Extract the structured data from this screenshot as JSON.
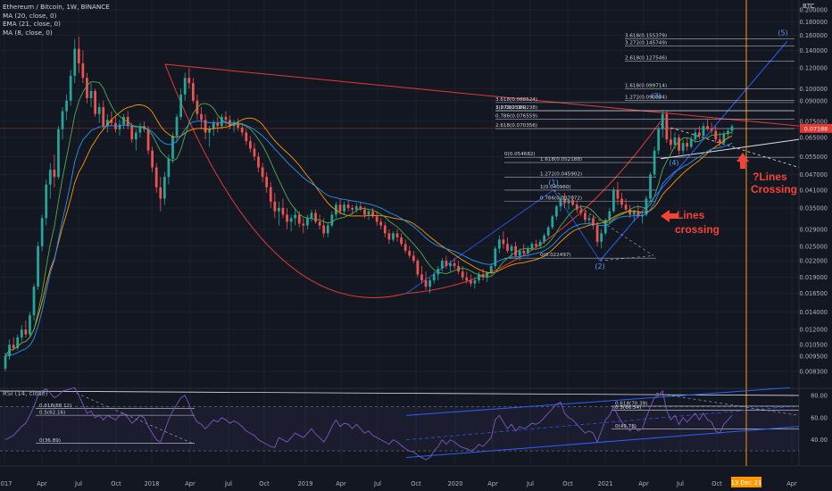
{
  "legend": {
    "symbol": "Ethereum / Bitcoin, 1W, BINANCE",
    "ema20": "MA (20, close, 0)",
    "ema21": "EMA (21, close, 0)",
    "ma8": "MA (8, close, 0)"
  },
  "currency_label": "BTC",
  "rsi_legend": "RSI (14, close)",
  "annotations": {
    "lines_crossing": "Lines\ncrossing",
    "future_crossing": "?Lines\nCrossing",
    "date_marker": "13 Dec 21"
  },
  "current_price_tag": "0.07188",
  "colors": {
    "up": "#26a69a",
    "down": "#ef5350",
    "ma20": "#ff9800",
    "ema21": "#2196f3",
    "ma8": "#4caf50",
    "resistance": "#e53935",
    "fib": "#d1d4dc",
    "rsi": "#7e57c2",
    "channel": "#2962ff",
    "annotation": "#f44336"
  },
  "chart_data": {
    "type": "candlestick",
    "title": "Ethereum / Bitcoin, 1W, BINANCE",
    "x_ticks": [
      "2017",
      "Apr",
      "Jul",
      "Oct",
      "2018",
      "Apr",
      "Jul",
      "Oct",
      "2019",
      "Apr",
      "Jul",
      "Oct",
      "2020",
      "Apr",
      "Jul",
      "Oct",
      "2021",
      "Apr",
      "Jul",
      "Oct",
      "13 Dec 21",
      "Apr"
    ],
    "y_ticks": [
      "0.200000",
      "0.180000",
      "0.160000",
      "0.140000",
      "0.120000",
      "0.100000",
      "0.090000",
      "0.075000",
      "0.065000",
      "0.055000",
      "0.047000",
      "0.041000",
      "0.035000",
      "0.029000",
      "0.025000",
      "0.022000",
      "0.019000",
      "0.016500",
      "0.014000",
      "0.012000",
      "0.010500",
      "0.009500",
      "0.008300"
    ],
    "rsi_ticks": [
      "80.00",
      "60.00",
      "40.00"
    ],
    "fib_labels_upper": [
      "3.618(0.155379)",
      "3.272(0.145749)",
      "2.618(0.127546)",
      "1.618(0.099714)",
      "1.272(0.090084)",
      "3.618(0.088524)",
      "1(0.082514)",
      "3.272(0.082238)",
      "0.786(0.076559)",
      "2.618(0.070356)",
      "0(0.054682)",
      "1.618(0.052188)",
      "1.272(0.045902)",
      "1(0.040960)",
      "0.786(0.037072)",
      "0(0.022497)"
    ],
    "fib_labels_rsi": [
      "0.618(68.12)",
      "0.5(62.16)",
      "0(36.89)",
      "0.618(70.39)",
      "0.5(66.54)",
      "0(49.78)"
    ],
    "wave_labels": [
      "(1)",
      "(2)",
      "(3)",
      "(4)",
      "(5)"
    ],
    "series": [
      {
        "name": "MA (20, close, 0)"
      },
      {
        "name": "EMA (21, close, 0)"
      },
      {
        "name": "MA (8, close, 0)"
      },
      {
        "name": "RSI (14, close)"
      }
    ],
    "candles": [
      [
        0.0085,
        0.0098,
        0.0083,
        0.0095
      ],
      [
        0.0095,
        0.011,
        0.0092,
        0.0105
      ],
      [
        0.0105,
        0.0112,
        0.01,
        0.0102
      ],
      [
        0.0102,
        0.0115,
        0.01,
        0.0112
      ],
      [
        0.0112,
        0.0125,
        0.0108,
        0.012
      ],
      [
        0.012,
        0.013,
        0.0112,
        0.0115
      ],
      [
        0.0115,
        0.014,
        0.0113,
        0.0136
      ],
      [
        0.0136,
        0.018,
        0.013,
        0.0175
      ],
      [
        0.0175,
        0.026,
        0.017,
        0.025
      ],
      [
        0.025,
        0.033,
        0.024,
        0.032
      ],
      [
        0.032,
        0.045,
        0.03,
        0.043
      ],
      [
        0.043,
        0.052,
        0.038,
        0.049
      ],
      [
        0.049,
        0.056,
        0.042,
        0.046
      ],
      [
        0.046,
        0.072,
        0.045,
        0.07
      ],
      [
        0.07,
        0.085,
        0.064,
        0.082
      ],
      [
        0.082,
        0.095,
        0.076,
        0.09
      ],
      [
        0.09,
        0.118,
        0.086,
        0.112
      ],
      [
        0.112,
        0.155,
        0.105,
        0.142
      ],
      [
        0.142,
        0.158,
        0.115,
        0.125
      ],
      [
        0.125,
        0.14,
        0.105,
        0.11
      ],
      [
        0.11,
        0.115,
        0.088,
        0.092
      ],
      [
        0.092,
        0.105,
        0.085,
        0.098
      ],
      [
        0.098,
        0.1,
        0.078,
        0.08
      ],
      [
        0.08,
        0.088,
        0.074,
        0.085
      ],
      [
        0.085,
        0.09,
        0.07,
        0.072
      ],
      [
        0.072,
        0.08,
        0.068,
        0.076
      ],
      [
        0.076,
        0.082,
        0.072,
        0.074
      ],
      [
        0.074,
        0.078,
        0.068,
        0.07
      ],
      [
        0.07,
        0.076,
        0.066,
        0.073
      ],
      [
        0.073,
        0.08,
        0.07,
        0.078
      ],
      [
        0.078,
        0.082,
        0.07,
        0.072
      ],
      [
        0.072,
        0.074,
        0.062,
        0.064
      ],
      [
        0.064,
        0.07,
        0.058,
        0.068
      ],
      [
        0.068,
        0.074,
        0.065,
        0.072
      ],
      [
        0.072,
        0.075,
        0.068,
        0.07
      ],
      [
        0.07,
        0.072,
        0.056,
        0.058
      ],
      [
        0.058,
        0.06,
        0.048,
        0.05
      ],
      [
        0.05,
        0.052,
        0.04,
        0.042
      ],
      [
        0.042,
        0.046,
        0.034,
        0.038
      ],
      [
        0.038,
        0.048,
        0.036,
        0.046
      ],
      [
        0.046,
        0.056,
        0.043,
        0.054
      ],
      [
        0.054,
        0.068,
        0.052,
        0.066
      ],
      [
        0.066,
        0.08,
        0.062,
        0.078
      ],
      [
        0.078,
        0.1,
        0.076,
        0.095
      ],
      [
        0.095,
        0.115,
        0.09,
        0.11
      ],
      [
        0.11,
        0.12,
        0.1,
        0.105
      ],
      [
        0.105,
        0.11,
        0.088,
        0.09
      ],
      [
        0.09,
        0.095,
        0.076,
        0.08
      ],
      [
        0.08,
        0.085,
        0.07,
        0.076
      ],
      [
        0.076,
        0.08,
        0.064,
        0.068
      ],
      [
        0.068,
        0.072,
        0.06,
        0.07
      ],
      [
        0.07,
        0.076,
        0.066,
        0.074
      ],
      [
        0.074,
        0.078,
        0.068,
        0.072
      ],
      [
        0.072,
        0.08,
        0.07,
        0.078
      ],
      [
        0.078,
        0.082,
        0.072,
        0.076
      ],
      [
        0.076,
        0.079,
        0.07,
        0.072
      ],
      [
        0.072,
        0.076,
        0.068,
        0.074
      ],
      [
        0.074,
        0.077,
        0.069,
        0.071
      ],
      [
        0.071,
        0.074,
        0.066,
        0.068
      ],
      [
        0.068,
        0.07,
        0.061,
        0.063
      ],
      [
        0.063,
        0.066,
        0.057,
        0.059
      ],
      [
        0.059,
        0.062,
        0.053,
        0.055
      ],
      [
        0.055,
        0.057,
        0.048,
        0.05
      ],
      [
        0.05,
        0.052,
        0.044,
        0.046
      ],
      [
        0.046,
        0.048,
        0.04,
        0.042
      ],
      [
        0.042,
        0.044,
        0.035,
        0.037
      ],
      [
        0.037,
        0.04,
        0.032,
        0.034
      ],
      [
        0.034,
        0.037,
        0.03,
        0.035
      ],
      [
        0.035,
        0.038,
        0.032,
        0.033
      ],
      [
        0.033,
        0.035,
        0.029,
        0.031
      ],
      [
        0.031,
        0.033,
        0.0285,
        0.032
      ],
      [
        0.032,
        0.035,
        0.03,
        0.033
      ],
      [
        0.033,
        0.034,
        0.0295,
        0.0305
      ],
      [
        0.0305,
        0.032,
        0.028,
        0.03
      ],
      [
        0.03,
        0.033,
        0.029,
        0.032
      ],
      [
        0.032,
        0.0345,
        0.031,
        0.0335
      ],
      [
        0.0335,
        0.0345,
        0.0305,
        0.031
      ],
      [
        0.031,
        0.033,
        0.029,
        0.03
      ],
      [
        0.03,
        0.032,
        0.027,
        0.028
      ],
      [
        0.028,
        0.031,
        0.027,
        0.03
      ],
      [
        0.03,
        0.034,
        0.0295,
        0.033
      ],
      [
        0.033,
        0.037,
        0.032,
        0.036
      ],
      [
        0.036,
        0.038,
        0.033,
        0.034
      ],
      [
        0.034,
        0.037,
        0.033,
        0.036
      ],
      [
        0.036,
        0.0375,
        0.034,
        0.035
      ],
      [
        0.035,
        0.036,
        0.033,
        0.0345
      ],
      [
        0.0345,
        0.0365,
        0.0335,
        0.0355
      ],
      [
        0.0355,
        0.037,
        0.034,
        0.0345
      ],
      [
        0.0345,
        0.0355,
        0.032,
        0.033
      ],
      [
        0.033,
        0.0345,
        0.0315,
        0.034
      ],
      [
        0.034,
        0.035,
        0.032,
        0.0325
      ],
      [
        0.0325,
        0.034,
        0.03,
        0.031
      ],
      [
        0.031,
        0.032,
        0.029,
        0.03
      ],
      [
        0.03,
        0.031,
        0.027,
        0.028
      ],
      [
        0.028,
        0.029,
        0.0255,
        0.0265
      ],
      [
        0.0265,
        0.0285,
        0.026,
        0.028
      ],
      [
        0.028,
        0.029,
        0.026,
        0.027
      ],
      [
        0.027,
        0.028,
        0.025,
        0.0255
      ],
      [
        0.0255,
        0.0265,
        0.0235,
        0.024
      ],
      [
        0.024,
        0.025,
        0.0225,
        0.023
      ],
      [
        0.023,
        0.024,
        0.0215,
        0.022
      ],
      [
        0.022,
        0.0225,
        0.019,
        0.0195
      ],
      [
        0.0195,
        0.021,
        0.018,
        0.0185
      ],
      [
        0.0185,
        0.02,
        0.017,
        0.0175
      ],
      [
        0.0175,
        0.019,
        0.0165,
        0.0185
      ],
      [
        0.0185,
        0.02,
        0.018,
        0.0195
      ],
      [
        0.0195,
        0.021,
        0.0185,
        0.0205
      ],
      [
        0.0205,
        0.0225,
        0.02,
        0.022
      ],
      [
        0.022,
        0.023,
        0.0205,
        0.021
      ],
      [
        0.021,
        0.022,
        0.02,
        0.0215
      ],
      [
        0.0215,
        0.0225,
        0.0205,
        0.021
      ],
      [
        0.021,
        0.022,
        0.0195,
        0.02
      ],
      [
        0.02,
        0.021,
        0.0185,
        0.019
      ],
      [
        0.019,
        0.02,
        0.018,
        0.0185
      ],
      [
        0.0185,
        0.0195,
        0.0175,
        0.018
      ],
      [
        0.018,
        0.019,
        0.0172,
        0.0185
      ],
      [
        0.0185,
        0.02,
        0.018,
        0.0195
      ],
      [
        0.0195,
        0.0205,
        0.0185,
        0.019
      ],
      [
        0.019,
        0.02,
        0.0182,
        0.0198
      ],
      [
        0.0198,
        0.0215,
        0.0195,
        0.021
      ],
      [
        0.021,
        0.025,
        0.0205,
        0.0245
      ],
      [
        0.0245,
        0.0275,
        0.0235,
        0.0265
      ],
      [
        0.0265,
        0.0285,
        0.0245,
        0.0255
      ],
      [
        0.0255,
        0.027,
        0.0235,
        0.024
      ],
      [
        0.024,
        0.0255,
        0.0225,
        0.025
      ],
      [
        0.025,
        0.026,
        0.0225,
        0.023
      ],
      [
        0.023,
        0.0245,
        0.022,
        0.024
      ],
      [
        0.024,
        0.0255,
        0.023,
        0.0235
      ],
      [
        0.0235,
        0.025,
        0.0228,
        0.0245
      ],
      [
        0.0245,
        0.026,
        0.024,
        0.0255
      ],
      [
        0.0255,
        0.0265,
        0.0245,
        0.025
      ],
      [
        0.025,
        0.0265,
        0.0245,
        0.026
      ],
      [
        0.026,
        0.028,
        0.0255,
        0.0275
      ],
      [
        0.0275,
        0.03,
        0.027,
        0.0295
      ],
      [
        0.0295,
        0.033,
        0.029,
        0.0325
      ],
      [
        0.0325,
        0.036,
        0.0315,
        0.0355
      ],
      [
        0.0355,
        0.039,
        0.034,
        0.038
      ],
      [
        0.038,
        0.04,
        0.035,
        0.0365
      ],
      [
        0.0365,
        0.038,
        0.0345,
        0.0375
      ],
      [
        0.0375,
        0.039,
        0.0355,
        0.036
      ],
      [
        0.036,
        0.0375,
        0.0335,
        0.0345
      ],
      [
        0.0345,
        0.036,
        0.0325,
        0.0335
      ],
      [
        0.0335,
        0.0345,
        0.0305,
        0.0315
      ],
      [
        0.0315,
        0.033,
        0.03,
        0.032
      ],
      [
        0.032,
        0.033,
        0.029,
        0.03
      ],
      [
        0.03,
        0.031,
        0.025,
        0.026
      ],
      [
        0.026,
        0.029,
        0.0245,
        0.028
      ],
      [
        0.028,
        0.032,
        0.0275,
        0.0315
      ],
      [
        0.0315,
        0.035,
        0.031,
        0.034
      ],
      [
        0.034,
        0.042,
        0.0335,
        0.041
      ],
      [
        0.041,
        0.044,
        0.036,
        0.038
      ],
      [
        0.038,
        0.04,
        0.035,
        0.036
      ],
      [
        0.036,
        0.038,
        0.0335,
        0.0345
      ],
      [
        0.0345,
        0.036,
        0.032,
        0.033
      ],
      [
        0.033,
        0.0345,
        0.031,
        0.034
      ],
      [
        0.034,
        0.036,
        0.032,
        0.0325
      ],
      [
        0.0325,
        0.034,
        0.0305,
        0.033
      ],
      [
        0.033,
        0.039,
        0.0325,
        0.038
      ],
      [
        0.038,
        0.048,
        0.037,
        0.047
      ],
      [
        0.047,
        0.06,
        0.046,
        0.058
      ],
      [
        0.058,
        0.072,
        0.056,
        0.07
      ],
      [
        0.07,
        0.083,
        0.065,
        0.08
      ],
      [
        0.08,
        0.0825,
        0.062,
        0.064
      ],
      [
        0.064,
        0.07,
        0.058,
        0.061
      ],
      [
        0.061,
        0.068,
        0.059,
        0.065
      ],
      [
        0.065,
        0.067,
        0.056,
        0.058
      ],
      [
        0.058,
        0.064,
        0.055,
        0.062
      ],
      [
        0.062,
        0.065,
        0.058,
        0.06
      ],
      [
        0.06,
        0.066,
        0.059,
        0.064
      ],
      [
        0.064,
        0.07,
        0.062,
        0.068
      ],
      [
        0.068,
        0.072,
        0.064,
        0.066
      ],
      [
        0.066,
        0.074,
        0.065,
        0.072
      ],
      [
        0.072,
        0.077,
        0.069,
        0.07
      ],
      [
        0.07,
        0.074,
        0.067,
        0.069
      ],
      [
        0.069,
        0.072,
        0.062,
        0.064
      ],
      [
        0.064,
        0.068,
        0.06,
        0.062
      ],
      [
        0.062,
        0.069,
        0.061,
        0.067
      ],
      [
        0.067,
        0.071,
        0.065,
        0.069
      ],
      [
        0.069,
        0.073,
        0.067,
        0.0719
      ]
    ],
    "rsi": [
      40,
      42,
      44,
      48,
      52,
      55,
      62,
      70,
      80,
      84,
      86,
      82,
      78,
      80,
      84,
      85,
      86,
      87,
      80,
      72,
      64,
      66,
      60,
      62,
      58,
      62,
      60,
      58,
      62,
      64,
      60,
      55,
      58,
      62,
      60,
      52,
      46,
      40,
      38,
      48,
      58,
      66,
      72,
      78,
      80,
      72,
      62,
      56,
      54,
      50,
      54,
      58,
      56,
      60,
      58,
      55,
      57,
      55,
      52,
      48,
      46,
      44,
      40,
      38,
      36,
      34,
      33,
      42,
      40,
      38,
      42,
      46,
      44,
      42,
      46,
      50,
      45,
      42,
      38,
      44,
      52,
      58,
      52,
      55,
      54,
      50,
      54,
      50,
      46,
      48,
      44,
      42,
      40,
      38,
      36,
      40,
      38,
      35,
      32,
      30,
      29,
      26,
      24,
      22,
      24,
      30,
      34,
      40,
      36,
      40,
      38,
      35,
      33,
      32,
      30,
      32,
      36,
      34,
      38,
      42,
      58,
      62,
      56,
      50,
      54,
      48,
      52,
      50,
      52,
      55,
      54,
      56,
      60,
      64,
      68,
      72,
      74,
      64,
      60,
      58,
      54,
      50,
      46,
      48,
      46,
      38,
      48,
      58,
      62,
      70,
      62,
      56,
      52,
      48,
      52,
      48,
      50,
      60,
      70,
      78,
      80,
      84,
      66,
      58,
      62,
      54,
      60,
      56,
      60,
      64,
      58,
      64,
      58,
      56,
      48,
      46,
      54,
      58,
      62
    ]
  }
}
